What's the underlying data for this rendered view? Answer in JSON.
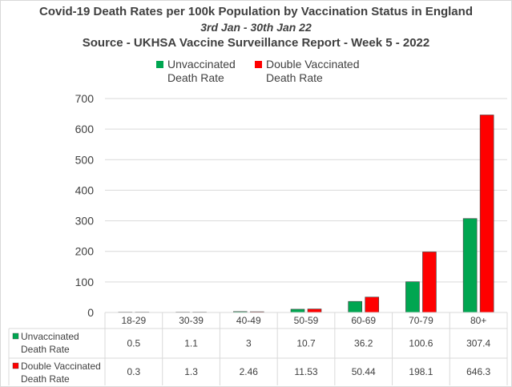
{
  "title": {
    "line1": "Covid-19 Death Rates per 100k Population by Vaccination Status in England",
    "line2": "3rd Jan - 30th Jan 22",
    "line3": "Source - UKHSA Vaccine Surveillance Report - Week 5 - 2022"
  },
  "chart_data": {
    "type": "bar",
    "categories": [
      "18-29",
      "30-39",
      "40-49",
      "50-59",
      "60-69",
      "70-79",
      "80+"
    ],
    "series": [
      {
        "name": "Unvaccinated Death Rate",
        "color": "#00a651",
        "values": [
          0.5,
          1.1,
          3,
          10.7,
          36.2,
          100.6,
          307.4
        ],
        "table_values": [
          "0.5",
          "1.1",
          "3",
          "10.7",
          "36.2",
          "100.6",
          "307.4"
        ]
      },
      {
        "name": "Double Vaccinated Death Rate",
        "color": "#ff0000",
        "values": [
          0.3,
          1.3,
          2.46,
          11.53,
          50.44,
          198.1,
          646.3
        ],
        "table_values": [
          "0.3",
          "1.3",
          "2.46",
          "11.53",
          "50.44",
          "198.1",
          "646.3"
        ]
      }
    ],
    "ylim": [
      0,
      700
    ],
    "yticks": [
      0,
      100,
      200,
      300,
      400,
      500,
      600,
      700
    ],
    "grid": true,
    "legend_position": "top",
    "data_table": true
  },
  "legend": {
    "unvaccinated_label": "Unvaccinated\nDeath Rate",
    "double_vaccinated_label": "Double Vaccinated\nDeath Rate"
  },
  "table": {
    "row1_label": "Unvaccinated\nDeath Rate",
    "row2_label": "Double Vaccinated\nDeath Rate"
  }
}
